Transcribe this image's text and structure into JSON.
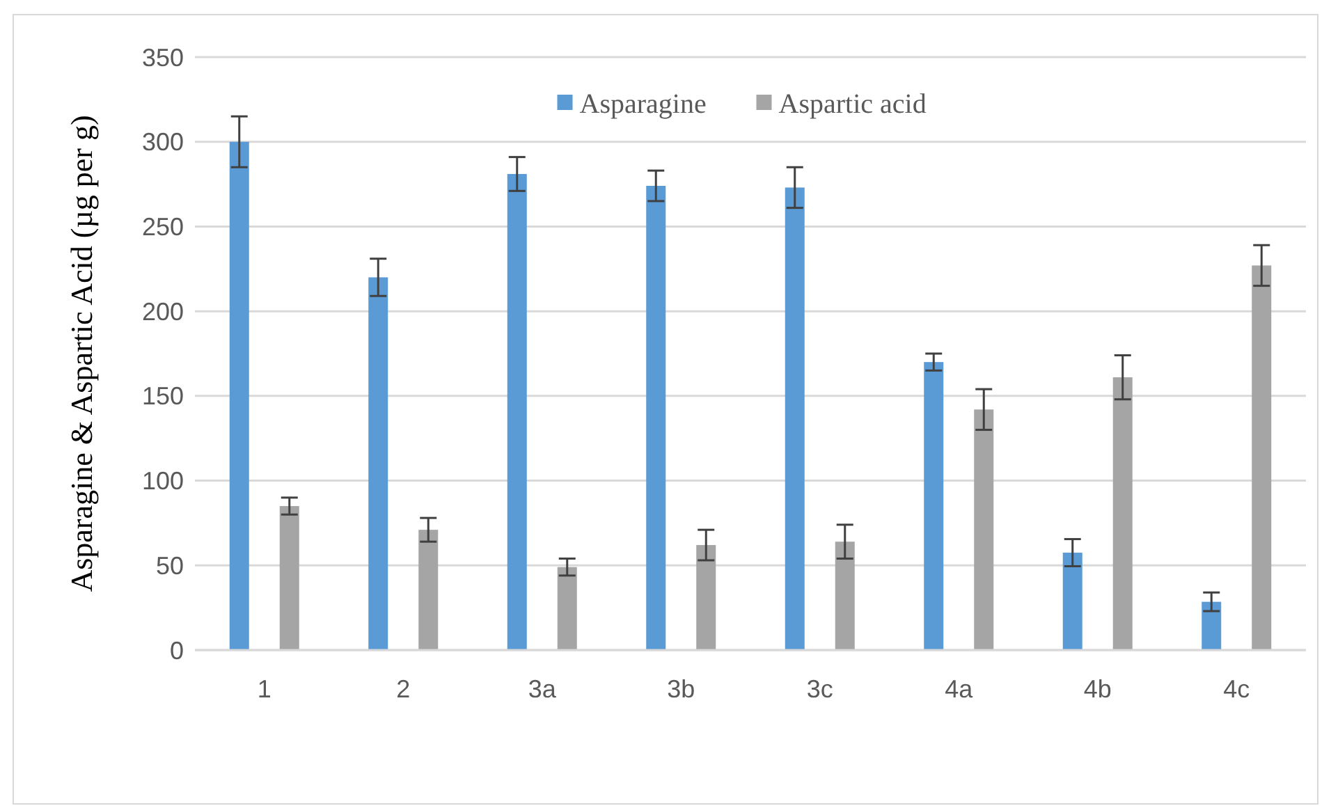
{
  "chart_data": {
    "type": "bar",
    "ylabel": "Asparagine & Aspartic Acid (µg per g)",
    "categories": [
      "1",
      "2",
      "3a",
      "3b",
      "3c",
      "4a",
      "4b",
      "4c"
    ],
    "series": [
      {
        "name": "Asparagine",
        "color": "#5b9bd5",
        "values": [
          300,
          220,
          281,
          274,
          273,
          170,
          57.5,
          28.5
        ],
        "errors": [
          15,
          11,
          10,
          9,
          12,
          5,
          8,
          5.5
        ]
      },
      {
        "name": "Aspartic acid",
        "color": "#a5a5a5",
        "values": [
          85,
          71,
          49,
          62,
          64,
          142,
          161,
          227
        ],
        "errors": [
          5,
          7,
          5,
          9,
          10,
          12,
          13,
          12
        ]
      }
    ],
    "ylim": [
      0,
      350
    ],
    "yticks": [
      0,
      50,
      100,
      150,
      200,
      250,
      300,
      350
    ],
    "grid": "y",
    "legend": "top"
  }
}
